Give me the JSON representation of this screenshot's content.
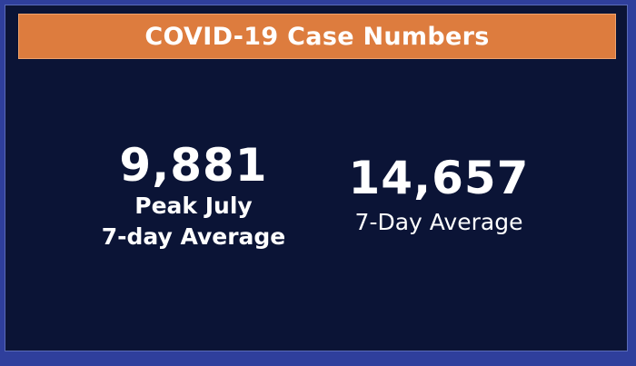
{
  "banner": {
    "title": "COVID-19 Case Numbers"
  },
  "stats": {
    "peak": {
      "value": "9,881",
      "label_line1": "Peak July",
      "label_line2": "7-day Average"
    },
    "current": {
      "value": "14,657",
      "label": "7-Day Average"
    }
  },
  "colors": {
    "frame": "#2f3f9c",
    "background": "#0b1436",
    "banner": "#dd7c3e",
    "text": "#ffffff"
  }
}
